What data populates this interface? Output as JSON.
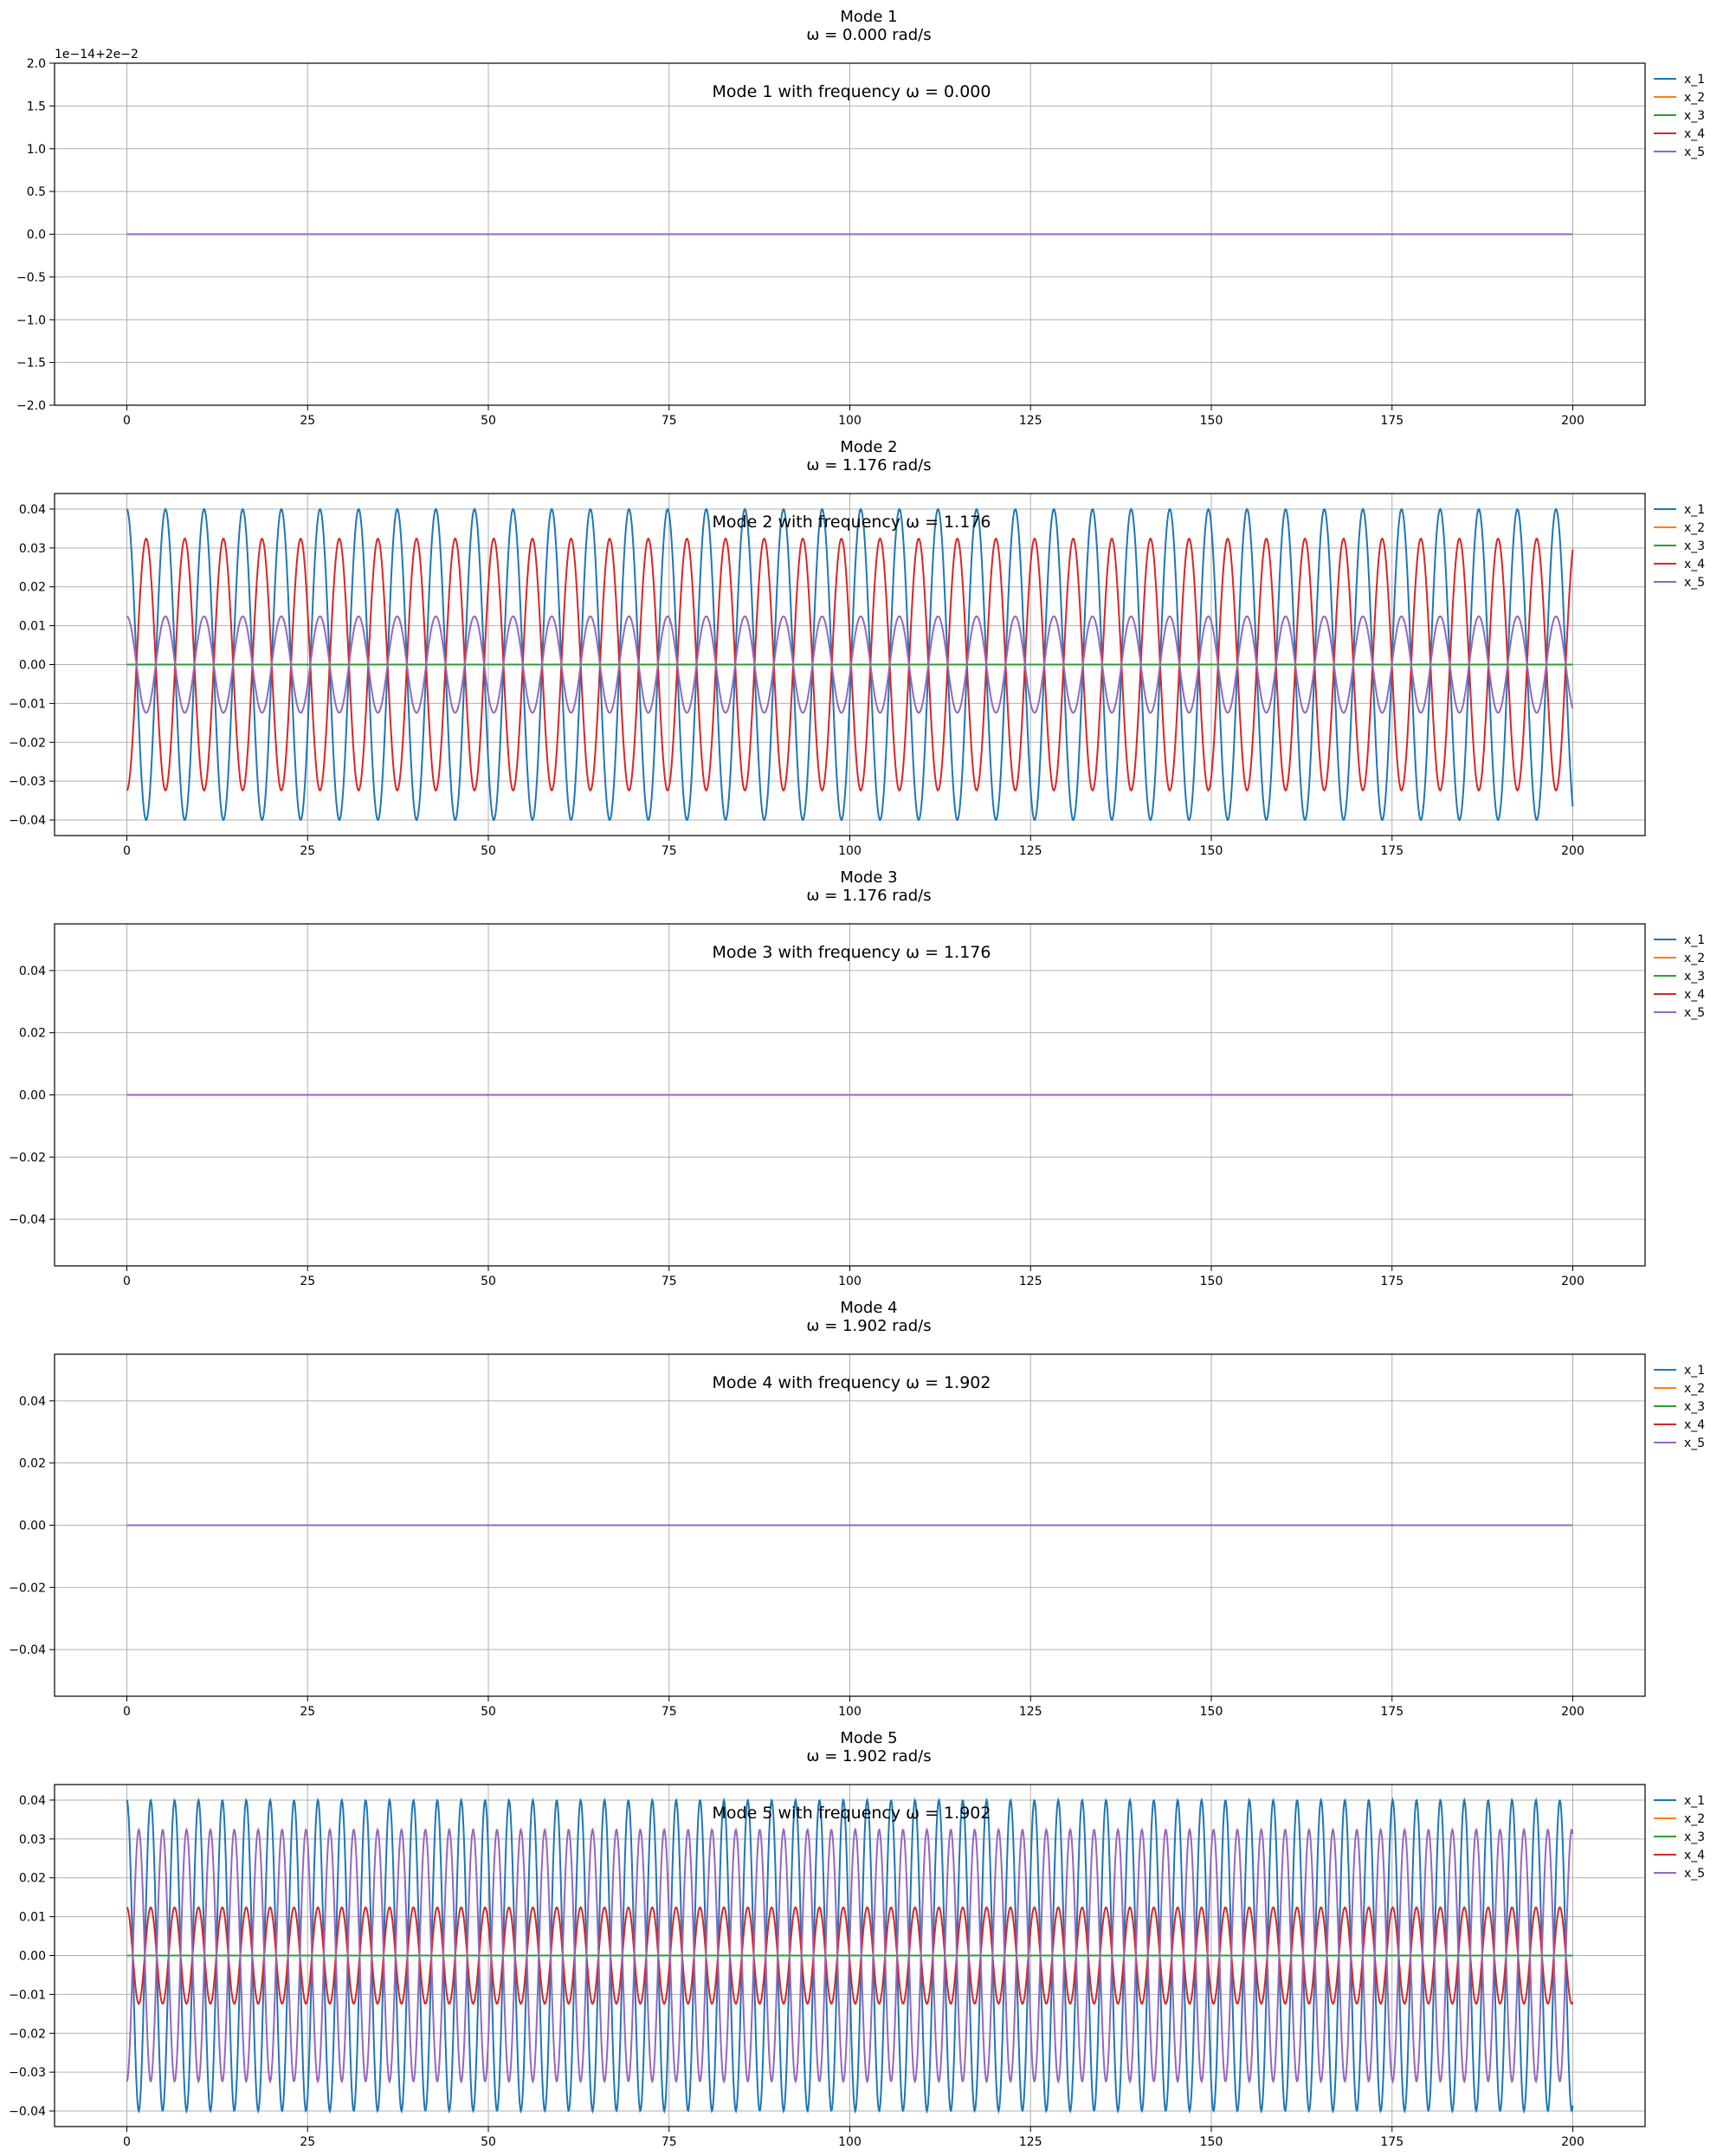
{
  "chart_data": [
    {
      "type": "line",
      "title": "Mode 1",
      "subtitle": "ω = 0.000 rad/s",
      "annotation": "Mode 1 with frequency ω = 0.000",
      "offset_text": "1e−14+2e−2",
      "omega": 0.0,
      "xlim": [
        -10,
        210
      ],
      "ylim": [
        -2.0,
        2.0
      ],
      "xticks": [
        0,
        25,
        50,
        75,
        100,
        125,
        150,
        175,
        200
      ],
      "yticks": [
        -2.0,
        -1.5,
        -1.0,
        -0.5,
        0.0,
        0.5,
        1.0,
        1.5,
        2.0
      ],
      "ytick_labels": [
        "−2.0",
        "−1.5",
        "−1.0",
        "−0.5",
        "0.0",
        "0.5",
        "1.0",
        "1.5",
        "2.0"
      ],
      "grid": true,
      "legend": "outside-right-top",
      "series": [
        {
          "name": "x_1",
          "amplitude": 0,
          "phase": 0
        },
        {
          "name": "x_2",
          "amplitude": 0,
          "phase": 0
        },
        {
          "name": "x_3",
          "amplitude": 0,
          "phase": 0
        },
        {
          "name": "x_4",
          "amplitude": 0,
          "phase": 0
        },
        {
          "name": "x_5",
          "amplitude": 0,
          "phase": 0
        }
      ]
    },
    {
      "type": "line",
      "title": "Mode 2",
      "subtitle": "ω = 1.176 rad/s",
      "annotation": "Mode 2 with frequency ω = 1.176",
      "offset_text": "",
      "omega": 1.176,
      "xlim": [
        -10,
        210
      ],
      "ylim": [
        -0.044,
        0.044
      ],
      "xticks": [
        0,
        25,
        50,
        75,
        100,
        125,
        150,
        175,
        200
      ],
      "yticks": [
        -0.04,
        -0.03,
        -0.02,
        -0.01,
        0.0,
        0.01,
        0.02,
        0.03,
        0.04
      ],
      "ytick_labels": [
        "−0.04",
        "−0.03",
        "−0.02",
        "−0.01",
        "0.00",
        "0.01",
        "0.02",
        "0.03",
        "0.04"
      ],
      "grid": true,
      "legend": "outside-right-top",
      "series": [
        {
          "name": "x_1",
          "amplitude": 0.04,
          "phase": 0
        },
        {
          "name": "x_2",
          "amplitude": 0,
          "phase": 0
        },
        {
          "name": "x_3",
          "amplitude": 0,
          "phase": 0
        },
        {
          "name": "x_4",
          "amplitude": 0.0324,
          "phase": 3.14159
        },
        {
          "name": "x_5",
          "amplitude": 0.0124,
          "phase": 0
        }
      ]
    },
    {
      "type": "line",
      "title": "Mode 3",
      "subtitle": "ω = 1.176 rad/s",
      "annotation": "Mode 3 with frequency ω = 1.176",
      "offset_text": "",
      "omega": 1.176,
      "xlim": [
        -10,
        210
      ],
      "ylim": [
        -0.055,
        0.055
      ],
      "xticks": [
        0,
        25,
        50,
        75,
        100,
        125,
        150,
        175,
        200
      ],
      "yticks": [
        -0.04,
        -0.02,
        0.0,
        0.02,
        0.04
      ],
      "ytick_labels": [
        "−0.04",
        "−0.02",
        "0.00",
        "0.02",
        "0.04"
      ],
      "grid": true,
      "legend": "outside-right-top",
      "series": [
        {
          "name": "x_1",
          "amplitude": 0,
          "phase": 0
        },
        {
          "name": "x_2",
          "amplitude": 0,
          "phase": 0
        },
        {
          "name": "x_3",
          "amplitude": 0,
          "phase": 0
        },
        {
          "name": "x_4",
          "amplitude": 0,
          "phase": 0
        },
        {
          "name": "x_5",
          "amplitude": 0,
          "phase": 0
        }
      ]
    },
    {
      "type": "line",
      "title": "Mode 4",
      "subtitle": "ω = 1.902 rad/s",
      "annotation": "Mode 4 with frequency ω = 1.902",
      "offset_text": "",
      "omega": 1.902,
      "xlim": [
        -10,
        210
      ],
      "ylim": [
        -0.055,
        0.055
      ],
      "xticks": [
        0,
        25,
        50,
        75,
        100,
        125,
        150,
        175,
        200
      ],
      "yticks": [
        -0.04,
        -0.02,
        0.0,
        0.02,
        0.04
      ],
      "ytick_labels": [
        "−0.04",
        "−0.02",
        "0.00",
        "0.02",
        "0.04"
      ],
      "grid": true,
      "legend": "outside-right-top",
      "series": [
        {
          "name": "x_1",
          "amplitude": 0,
          "phase": 0
        },
        {
          "name": "x_2",
          "amplitude": 0,
          "phase": 0
        },
        {
          "name": "x_3",
          "amplitude": 0,
          "phase": 0
        },
        {
          "name": "x_4",
          "amplitude": 0,
          "phase": 0
        },
        {
          "name": "x_5",
          "amplitude": 0,
          "phase": 0
        }
      ]
    },
    {
      "type": "line",
      "title": "Mode 5",
      "subtitle": "ω = 1.902 rad/s",
      "annotation": "Mode 5 with frequency ω = 1.902",
      "offset_text": "",
      "omega": 1.902,
      "xlim": [
        -10,
        210
      ],
      "ylim": [
        -0.044,
        0.044
      ],
      "xticks": [
        0,
        25,
        50,
        75,
        100,
        125,
        150,
        175,
        200
      ],
      "yticks": [
        -0.04,
        -0.03,
        -0.02,
        -0.01,
        0.0,
        0.01,
        0.02,
        0.03,
        0.04
      ],
      "ytick_labels": [
        "−0.04",
        "−0.03",
        "−0.02",
        "−0.01",
        "0.00",
        "0.01",
        "0.02",
        "0.03",
        "0.04"
      ],
      "grid": true,
      "legend": "outside-right-top",
      "series": [
        {
          "name": "x_1",
          "amplitude": 0.04,
          "phase": 0
        },
        {
          "name": "x_2",
          "amplitude": 0,
          "phase": 0
        },
        {
          "name": "x_3",
          "amplitude": 0,
          "phase": 0
        },
        {
          "name": "x_4",
          "amplitude": 0.0124,
          "phase": 0
        },
        {
          "name": "x_5",
          "amplitude": 0.0324,
          "phase": 3.14159
        }
      ]
    }
  ],
  "colors": {
    "x_1": "#1f77b4",
    "x_2": "#ff7f0e",
    "x_3": "#2ca02c",
    "x_4": "#d62728",
    "x_5": "#9467bd"
  }
}
